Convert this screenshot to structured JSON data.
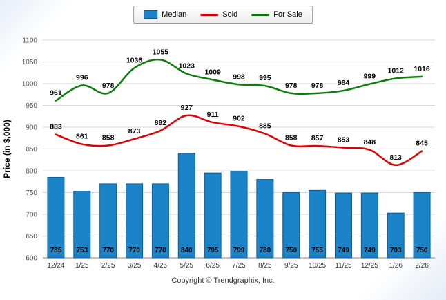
{
  "chart_data": {
    "type": "bar+line",
    "categories": [
      "12/24",
      "1/25",
      "2/25",
      "3/25",
      "4/25",
      "5/25",
      "6/25",
      "7/25",
      "8/25",
      "9/25",
      "10/25",
      "11/25",
      "12/25",
      "1/26",
      "2/26"
    ],
    "series": [
      {
        "name": "Median",
        "type": "bar",
        "color": "#1b84c8",
        "border_color": "#0d5d94",
        "values": [
          785,
          753,
          770,
          770,
          770,
          840,
          795,
          799,
          780,
          750,
          755,
          749,
          749,
          703,
          750
        ]
      },
      {
        "name": "Sold",
        "type": "line",
        "color": "#e30000",
        "values": [
          883,
          861,
          858,
          873,
          892,
          927,
          911,
          902,
          885,
          858,
          857,
          853,
          848,
          813,
          845
        ]
      },
      {
        "name": "For Sale",
        "type": "line",
        "color": "#0b7d0b",
        "values": [
          961,
          996,
          978,
          1036,
          1055,
          1023,
          1009,
          998,
          995,
          978,
          978,
          984,
          999,
          1012,
          1016
        ]
      }
    ],
    "title": "",
    "xlabel": "",
    "ylabel": "Price (in $,000)",
    "ylim": [
      600,
      1100
    ],
    "ytick_step": 50,
    "grid": true,
    "legend_position": "top",
    "footer": "Copyright © Trendgraphix, Inc."
  },
  "colors": {
    "gridline": "#d9d9d9",
    "axis": "#8a8a8a",
    "tick_label": "#555555",
    "x_label": "#333333",
    "data_label": "#000000"
  }
}
